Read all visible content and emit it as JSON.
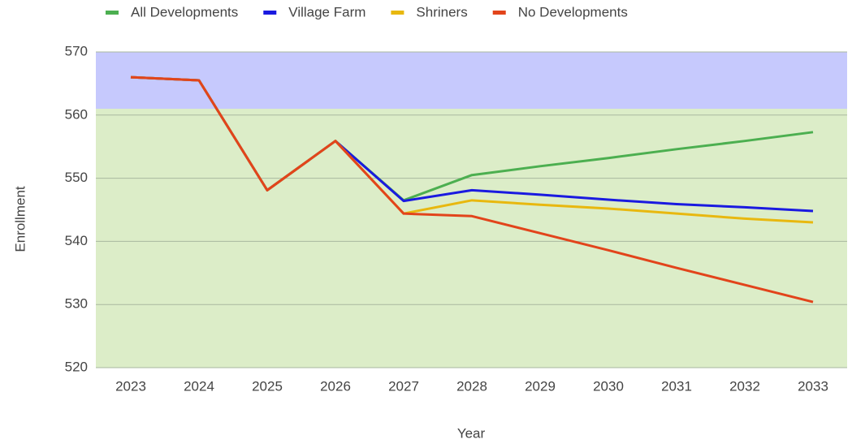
{
  "chart_data": {
    "type": "line",
    "x_label": "Year",
    "y_label": "Enrollment",
    "categories": [
      "2023",
      "2024",
      "2025",
      "2026",
      "2027",
      "2028",
      "2029",
      "2030",
      "2031",
      "2032",
      "2033"
    ],
    "series": [
      {
        "name": "All Developments",
        "color": "#4caf50",
        "values": [
          566,
          565.5,
          548.1,
          555.9,
          546.5,
          550.5,
          551.9,
          553.2,
          554.6,
          555.9,
          557.3
        ]
      },
      {
        "name": "Village Farm",
        "color": "#1a1ae0",
        "values": [
          566,
          565.5,
          548.1,
          555.9,
          546.4,
          548.1,
          547.4,
          546.6,
          545.9,
          545.4,
          544.8
        ]
      },
      {
        "name": "Shriners",
        "color": "#e8b80f",
        "values": [
          566,
          565.5,
          548.1,
          555.9,
          544.4,
          546.5,
          545.8,
          545.2,
          544.4,
          543.6,
          543.0
        ]
      },
      {
        "name": "No Developments",
        "color": "#e2441b",
        "values": [
          566,
          565.5,
          548.1,
          555.9,
          544.4,
          544.0,
          541.3,
          538.6,
          535.8,
          533.1,
          530.4
        ]
      }
    ],
    "bands": [
      {
        "from": 561,
        "to": 570,
        "color": "#c6c9fd"
      },
      {
        "from": 520,
        "to": 561,
        "color": "#dcedc8"
      }
    ],
    "ylim": [
      520,
      570
    ],
    "yticks": [
      520,
      530,
      540,
      550,
      560,
      570
    ],
    "grid": true,
    "legend": "top"
  }
}
